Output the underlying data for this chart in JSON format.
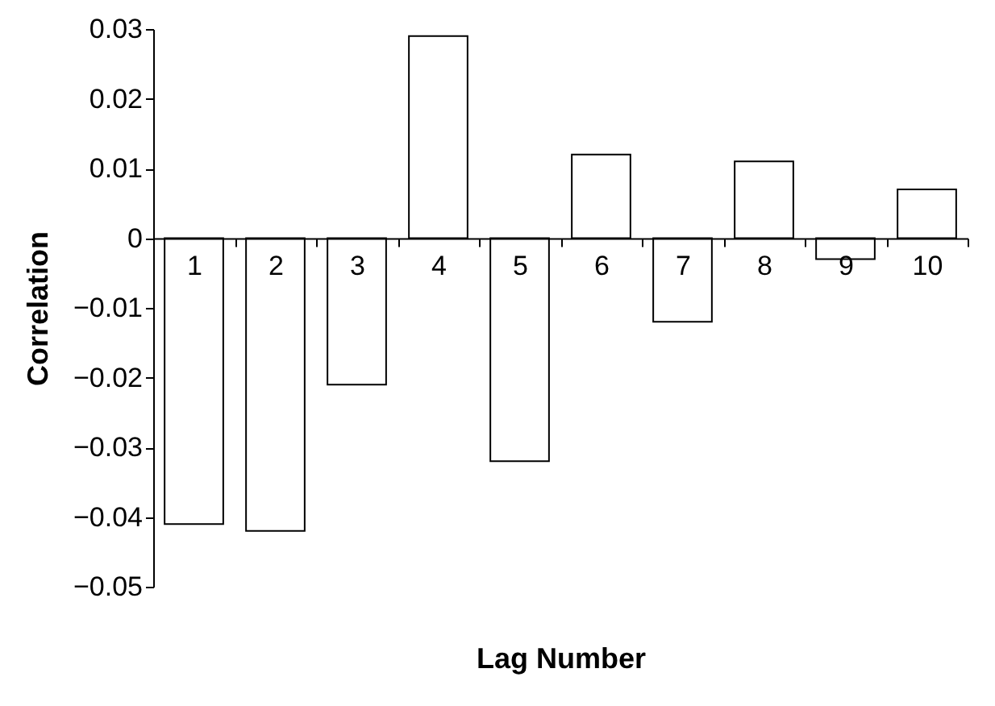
{
  "chart_data": {
    "type": "bar",
    "xlabel": "Lag Number",
    "ylabel": "Correlation",
    "categories": [
      "1",
      "2",
      "3",
      "4",
      "5",
      "6",
      "7",
      "8",
      "9",
      "10"
    ],
    "values": [
      -0.041,
      -0.042,
      -0.021,
      0.029,
      -0.032,
      0.012,
      -0.012,
      0.011,
      -0.003,
      0.007
    ],
    "color": "#ffffff",
    "ylim": [
      -0.05,
      0.03
    ],
    "yticks": [
      -0.05,
      -0.04,
      -0.03,
      -0.02,
      -0.01,
      0,
      0.01,
      0.02,
      0.03
    ],
    "grid": false
  }
}
